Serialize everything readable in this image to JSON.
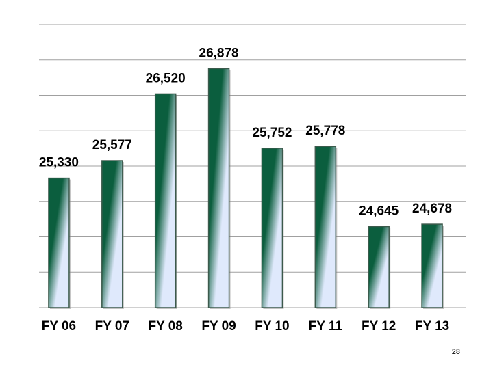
{
  "chart_data": {
    "type": "bar",
    "categories": [
      "FY 06",
      "FY 07",
      "FY 08",
      "FY 09",
      "FY 10",
      "FY 11",
      "FY 12",
      "FY 13"
    ],
    "values": [
      25330,
      25577,
      26520,
      26878,
      25752,
      25778,
      24645,
      24678
    ],
    "value_labels": [
      "25,330",
      "25,577",
      "26,520",
      "26,878",
      "25,752",
      "25,778",
      "24,645",
      "24,678"
    ],
    "colors": [
      "#0b5e3e",
      "#dfe9fc"
    ],
    "ylim": [
      23500,
      27500
    ],
    "yticks": [
      23500,
      24000,
      24500,
      25000,
      25500,
      26000,
      26500,
      27000,
      27500
    ],
    "grid": true
  },
  "page_number": "28"
}
